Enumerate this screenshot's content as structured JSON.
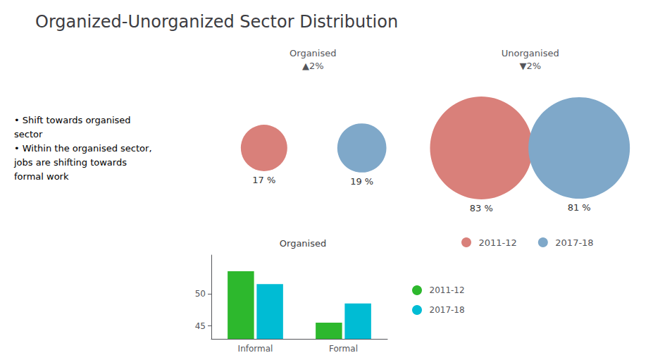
{
  "chart_data": [
    {
      "type": "bubble",
      "title": "Organized-Unorganized Sector Distribution",
      "annotations": [
        "• Shift towards organised",
        "sector",
        "• Within the organised sector,",
        "jobs are shifting towards",
        "formal work"
      ],
      "categories": [
        "Organised",
        "Unorganised"
      ],
      "change_labels": [
        "▲2%",
        "▼2%"
      ],
      "series": [
        {
          "name": "2011-12",
          "color": "#d9807a",
          "values": [
            17,
            83
          ],
          "value_labels": [
            "17 %",
            "83 %"
          ]
        },
        {
          "name": "2017-18",
          "color": "#7fa8c9",
          "values": [
            19,
            81
          ],
          "value_labels": [
            "19 %",
            "81 %"
          ]
        }
      ],
      "data_labels": true,
      "tick_labels": "x",
      "legend": "bottom"
    },
    {
      "type": "bar",
      "title": "Organised",
      "categories": [
        "Informal",
        "Formal"
      ],
      "series": [
        {
          "name": "2011-12",
          "color": "#2db82d",
          "values": [
            53.5,
            45.5
          ]
        },
        {
          "name": "2017-18",
          "color": "#00bcd4",
          "values": [
            51.5,
            48.5
          ]
        }
      ],
      "ylim": [
        43.0,
        56.0
      ],
      "yticks": [
        45,
        50
      ],
      "grid": false,
      "legend": "right"
    }
  ]
}
